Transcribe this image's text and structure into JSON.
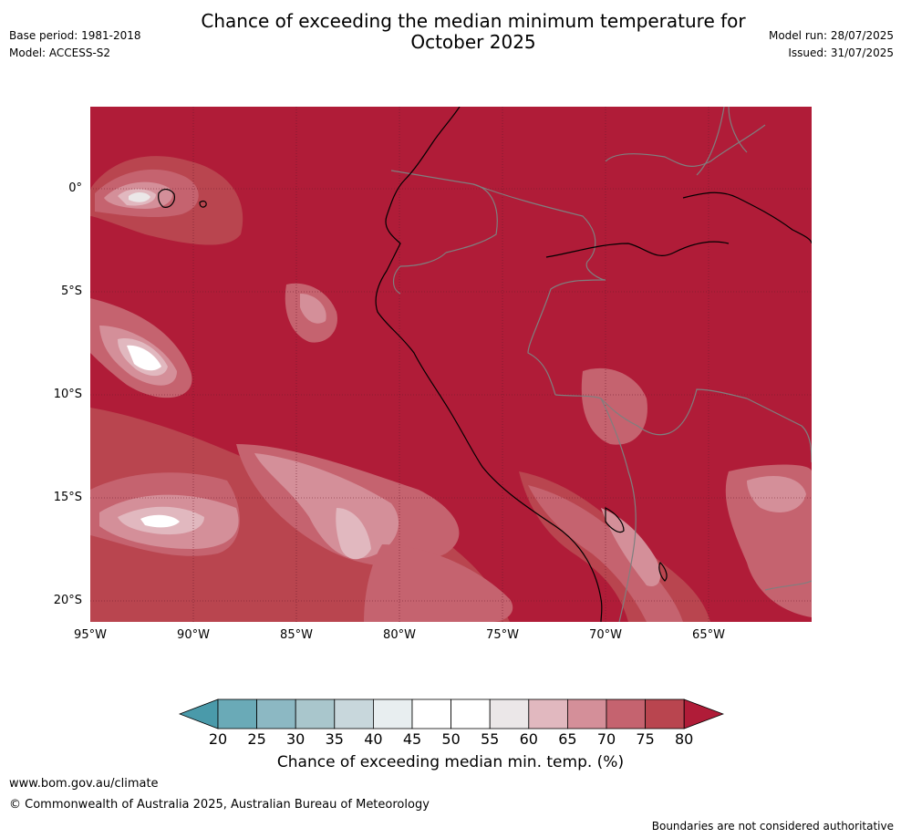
{
  "header": {
    "base_period": "Base period: 1981-2018",
    "model": "Model: ACCESS-S2",
    "title_line1": "Chance of exceeding the median minimum temperature for",
    "title_line2": "October 2025",
    "model_run": "Model run: 28/07/2025",
    "issued": "Issued: 31/07/2025"
  },
  "map": {
    "latitude_labels": [
      "0°",
      "5°S",
      "10°S",
      "15°S",
      "20°S"
    ],
    "longitude_labels": [
      "95°W",
      "90°W",
      "85°W",
      "80°W",
      "75°W",
      "70°W",
      "65°W"
    ],
    "background_color": "#b01c38"
  },
  "colorbar": {
    "ticks": [
      "20",
      "25",
      "30",
      "35",
      "40",
      "45",
      "50",
      "55",
      "60",
      "65",
      "70",
      "75",
      "80"
    ],
    "colors": [
      "#6aaab7",
      "#8cb8c3",
      "#a9c6cc",
      "#c8d7dc",
      "#e8eef0",
      "#ffffff",
      "#ffffff",
      "#ebe7e8",
      "#e1b8bf",
      "#d48f99",
      "#c5636f",
      "#b9454f"
    ],
    "under_color": "#4a9aaa",
    "over_color": "#b01c38",
    "label": "Chance of exceeding median min. temp. (%)"
  },
  "footer": {
    "link": "www.bom.gov.au/climate",
    "copyright": "© Commonwealth of Australia 2025, Australian Bureau of Meteorology",
    "note": "Boundaries are not considered authoritative"
  }
}
